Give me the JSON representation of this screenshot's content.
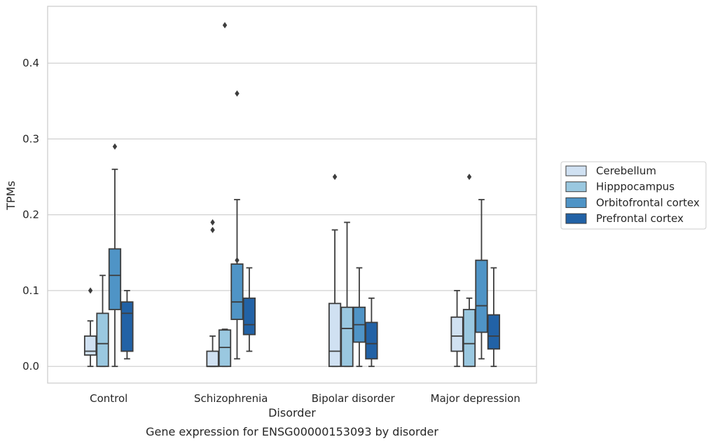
{
  "chart_data": {
    "type": "box",
    "title": "Gene expression for ENSG00000153093 by disorder",
    "xlabel": "Disorder",
    "ylabel": "TPMs",
    "ylim": [
      -0.022,
      0.475
    ],
    "yticks": [
      "0.0",
      "0.1",
      "0.2",
      "0.3",
      "0.4"
    ],
    "grid": "horizontal",
    "legend_position": "right",
    "categories": [
      "Control",
      "Schizophrenia",
      "Bipolar disorder",
      "Major depression"
    ],
    "series": [
      {
        "name": "Cerebellum",
        "color": "#d0e1f2",
        "boxes": [
          {
            "whisker_low": 0.0,
            "q1": 0.015,
            "median": 0.02,
            "q3": 0.04,
            "whisker_high": 0.06,
            "outliers": [
              0.1
            ]
          },
          {
            "whisker_low": 0.0,
            "q1": 0.0,
            "median": 0.0,
            "q3": 0.02,
            "whisker_high": 0.04,
            "outliers": [
              0.18,
              0.19
            ]
          },
          {
            "whisker_low": 0.0,
            "q1": 0.0,
            "median": 0.02,
            "q3": 0.083,
            "whisker_high": 0.18,
            "outliers": [
              0.25
            ]
          },
          {
            "whisker_low": 0.0,
            "q1": 0.02,
            "median": 0.04,
            "q3": 0.065,
            "whisker_high": 0.1,
            "outliers": []
          }
        ]
      },
      {
        "name": "Hipppocampus",
        "color": "#9ac8e0",
        "boxes": [
          {
            "whisker_low": 0.0,
            "q1": 0.0,
            "median": 0.03,
            "q3": 0.07,
            "whisker_high": 0.12,
            "outliers": []
          },
          {
            "whisker_low": 0.0,
            "q1": 0.0,
            "median": 0.025,
            "q3": 0.048,
            "whisker_high": 0.049,
            "outliers": [
              0.45
            ]
          },
          {
            "whisker_low": 0.0,
            "q1": 0.0,
            "median": 0.05,
            "q3": 0.078,
            "whisker_high": 0.19,
            "outliers": []
          },
          {
            "whisker_low": 0.0,
            "q1": 0.0,
            "median": 0.03,
            "q3": 0.075,
            "whisker_high": 0.09,
            "outliers": [
              0.25
            ]
          }
        ]
      },
      {
        "name": "Orbitofrontal cortex",
        "color": "#4f94c6",
        "boxes": [
          {
            "whisker_low": 0.0,
            "q1": 0.075,
            "median": 0.12,
            "q3": 0.155,
            "whisker_high": 0.26,
            "outliers": [
              0.29
            ]
          },
          {
            "whisker_low": 0.01,
            "q1": 0.062,
            "median": 0.085,
            "q3": 0.135,
            "whisker_high": 0.22,
            "outliers": [
              0.14,
              0.36
            ]
          },
          {
            "whisker_low": 0.0,
            "q1": 0.032,
            "median": 0.055,
            "q3": 0.078,
            "whisker_high": 0.13,
            "outliers": []
          },
          {
            "whisker_low": 0.01,
            "q1": 0.045,
            "median": 0.08,
            "q3": 0.14,
            "whisker_high": 0.22,
            "outliers": []
          }
        ]
      },
      {
        "name": "Prefrontal cortex",
        "color": "#2262a6",
        "boxes": [
          {
            "whisker_low": 0.01,
            "q1": 0.02,
            "median": 0.07,
            "q3": 0.085,
            "whisker_high": 0.1,
            "outliers": []
          },
          {
            "whisker_low": 0.02,
            "q1": 0.042,
            "median": 0.055,
            "q3": 0.09,
            "whisker_high": 0.13,
            "outliers": []
          },
          {
            "whisker_low": 0.0,
            "q1": 0.01,
            "median": 0.03,
            "q3": 0.058,
            "whisker_high": 0.09,
            "outliers": []
          },
          {
            "whisker_low": 0.0,
            "q1": 0.023,
            "median": 0.04,
            "q3": 0.068,
            "whisker_high": 0.13,
            "outliers": []
          }
        ]
      }
    ]
  }
}
